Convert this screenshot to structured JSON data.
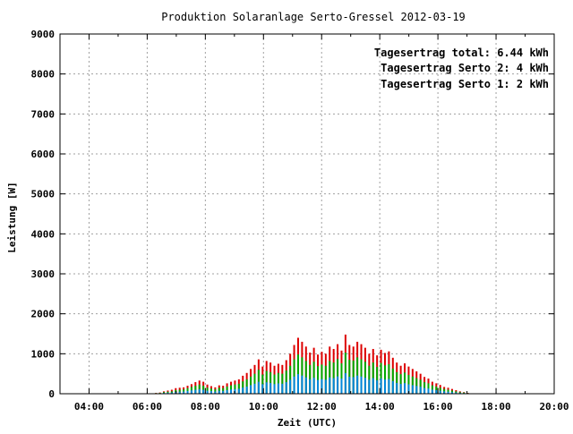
{
  "chart_data": {
    "type": "bar",
    "title": "Produktion Solaranlage Serto-Gressel 2012-03-19",
    "xlabel": "Zeit (UTC)",
    "ylabel": "Leistung [W]",
    "xlim": [
      "03:00",
      "20:00"
    ],
    "ylim": [
      0,
      9000
    ],
    "grid": true,
    "legend_position": "top-right",
    "x_ticks": [
      "04:00",
      "06:00",
      "08:00",
      "10:00",
      "12:00",
      "14:00",
      "16:00",
      "18:00",
      "20:00"
    ],
    "y_ticks": [
      "0",
      "1000",
      "2000",
      "3000",
      "4000",
      "5000",
      "6000",
      "7000",
      "8000",
      "9000"
    ],
    "legend": [
      {
        "text": "Tagesertrag total: 6.44 kWh",
        "color": "#ff0000"
      },
      {
        "text": "Tagesertrag Serto 2: 4 kWh",
        "color": "#00aa00"
      },
      {
        "text": "Tagesertrag Serto 1: 2 kWh",
        "color": "#0066cc"
      }
    ],
    "series_colors": {
      "total": "#dd0000",
      "serto2": "#00aa00",
      "serto1": "#0088dd"
    },
    "series": [
      {
        "name": "total",
        "values": [
          10,
          20,
          30,
          60,
          80,
          100,
          140,
          150,
          160,
          200,
          240,
          290,
          330,
          300,
          230,
          190,
          160,
          210,
          200,
          260,
          300,
          330,
          360,
          450,
          520,
          620,
          720,
          860,
          680,
          820,
          780,
          700,
          750,
          720,
          840,
          1000,
          1220,
          1400,
          1300,
          1180,
          1030,
          1150,
          980,
          1050,
          1000,
          1180,
          1120,
          1240,
          1080,
          1480,
          1220,
          1180,
          1300,
          1240,
          1150,
          1000,
          1120,
          960,
          1100,
          1020,
          1060,
          900,
          780,
          700,
          760,
          680,
          620,
          560,
          500,
          420,
          380,
          300,
          260,
          220,
          170,
          150,
          120,
          90,
          60,
          40,
          20,
          10
        ]
      },
      {
        "name": "Serto 2",
        "values": [
          5,
          15,
          20,
          40,
          50,
          60,
          90,
          100,
          110,
          140,
          170,
          200,
          230,
          200,
          150,
          130,
          110,
          150,
          140,
          180,
          210,
          230,
          250,
          310,
          360,
          430,
          500,
          600,
          480,
          570,
          540,
          480,
          520,
          500,
          580,
          700,
          860,
          980,
          910,
          820,
          720,
          800,
          690,
          730,
          700,
          820,
          780,
          870,
          760,
          1030,
          850,
          830,
          910,
          860,
          800,
          700,
          780,
          670,
          770,
          710,
          740,
          630,
          540,
          490,
          530,
          470,
          430,
          390,
          350,
          290,
          260,
          210,
          180,
          150,
          120,
          100,
          80,
          60,
          40,
          30,
          15,
          5
        ]
      },
      {
        "name": "Serto 1",
        "values": [
          3,
          8,
          10,
          20,
          25,
          30,
          45,
          50,
          55,
          70,
          85,
          100,
          115,
          100,
          75,
          65,
          55,
          75,
          70,
          90,
          105,
          115,
          125,
          155,
          180,
          215,
          250,
          300,
          240,
          285,
          270,
          240,
          260,
          250,
          290,
          350,
          430,
          490,
          455,
          410,
          360,
          400,
          345,
          365,
          350,
          410,
          390,
          435,
          380,
          515,
          425,
          415,
          455,
          430,
          400,
          350,
          390,
          335,
          385,
          355,
          370,
          315,
          270,
          245,
          265,
          235,
          215,
          195,
          175,
          145,
          130,
          105,
          90,
          75,
          60,
          50,
          40,
          30,
          20,
          15,
          8,
          3
        ]
      }
    ],
    "time_start": "06:10",
    "time_end": "17:10"
  }
}
